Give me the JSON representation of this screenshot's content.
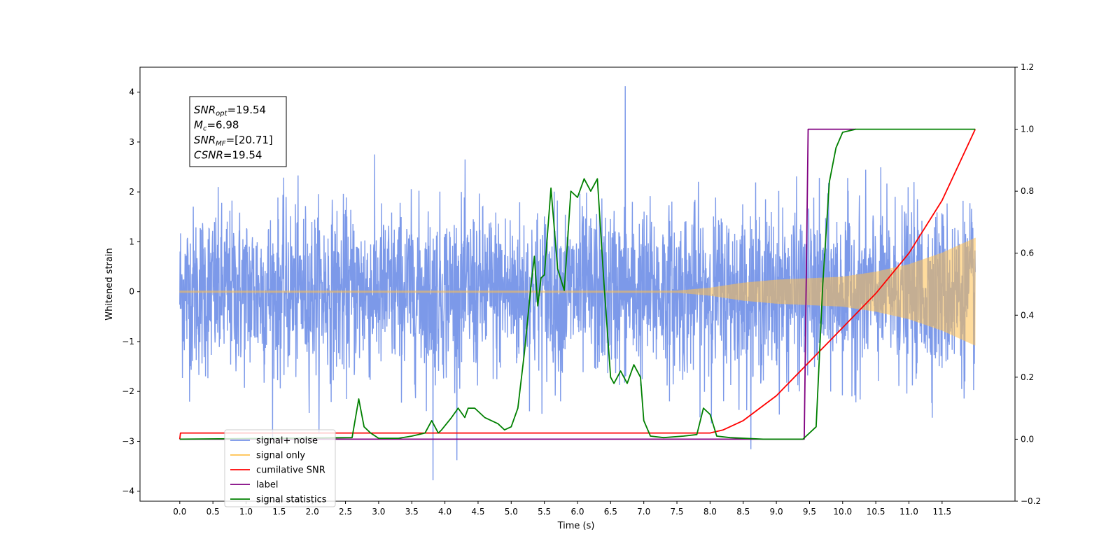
{
  "chart_data": {
    "type": "line",
    "xlabel": "Time (s)",
    "ylabel": "Whitened strain",
    "ylabel_right": "",
    "xlim": [
      -0.6,
      12.6
    ],
    "ylim": [
      -4.2,
      4.5
    ],
    "ylim_right": [
      -0.2,
      1.2
    ],
    "x_ticks": [
      "0.0",
      "0.5",
      "1.0",
      "1.5",
      "2.0",
      "2.5",
      "3.0",
      "3.5",
      "4.0",
      "4.5",
      "5.0",
      "5.5",
      "6.0",
      "6.5",
      "7.0",
      "7.5",
      "8.0",
      "8.5",
      "9.0",
      "9.5",
      "10.0",
      "10.5",
      "11.0",
      "11.5"
    ],
    "y_ticks": [
      "4",
      "3",
      "2",
      "1",
      "0",
      "−1",
      "−2",
      "−3",
      "−4"
    ],
    "y_ticks_right": [
      "1.2",
      "1.0",
      "0.8",
      "0.6",
      "0.4",
      "0.2",
      "0.0",
      "−0.2"
    ],
    "grid": false,
    "legend_position": "lower-left",
    "annotation": {
      "lines": [
        {
          "label": "SNR",
          "sub": "opt",
          "value": "=19.54"
        },
        {
          "label": "M",
          "sub": "c",
          "value": "=6.98"
        },
        {
          "label": "SNR",
          "sub": "MF",
          "value": "=[20.71]"
        },
        {
          "label": "CSNR",
          "sub": "",
          "value": "=19.54"
        }
      ]
    },
    "series": [
      {
        "name": "signal+ noise",
        "color": "#7593e8",
        "axis": "left",
        "kind": "noise",
        "noise_amplitude_typical": 1.6,
        "max_peak": {
          "x": 6.72,
          "y": 4.12
        },
        "min_peak": {
          "x": 3.82,
          "y": -3.78
        }
      },
      {
        "name": "signal only",
        "color": "#ffc04d",
        "axis": "left",
        "kind": "chirp",
        "envelope": [
          [
            0.0,
            0.02
          ],
          [
            7.5,
            0.02
          ],
          [
            8.0,
            0.08
          ],
          [
            8.5,
            0.18
          ],
          [
            9.0,
            0.24
          ],
          [
            9.5,
            0.27
          ],
          [
            10.0,
            0.3
          ],
          [
            10.5,
            0.4
          ],
          [
            11.0,
            0.55
          ],
          [
            11.5,
            0.78
          ],
          [
            12.0,
            1.08
          ]
        ]
      },
      {
        "name": "cumilative SNR",
        "color": "#ff0000",
        "axis": "right",
        "kind": "line",
        "x": [
          0.0,
          0.01,
          8.0,
          8.2,
          8.5,
          9.0,
          9.5,
          10.0,
          10.5,
          11.0,
          11.5,
          12.0
        ],
        "y": [
          0.0,
          0.02,
          0.02,
          0.03,
          0.06,
          0.14,
          0.25,
          0.36,
          0.47,
          0.6,
          0.77,
          1.0
        ]
      },
      {
        "name": "label",
        "color": "#800080",
        "axis": "right",
        "kind": "line",
        "x": [
          0.0,
          9.42,
          9.48,
          10.2
        ],
        "y": [
          0.0,
          0.0,
          1.0,
          1.0
        ]
      },
      {
        "name": "signal statistics",
        "color": "#008000",
        "axis": "right",
        "kind": "line",
        "x": [
          0.0,
          2.6,
          2.7,
          2.78,
          2.88,
          3.0,
          3.3,
          3.5,
          3.7,
          3.8,
          3.9,
          3.95,
          4.1,
          4.2,
          4.3,
          4.35,
          4.45,
          4.6,
          4.8,
          4.9,
          5.0,
          5.1,
          5.2,
          5.3,
          5.35,
          5.4,
          5.45,
          5.5,
          5.6,
          5.7,
          5.8,
          5.9,
          6.0,
          6.1,
          6.2,
          6.3,
          6.4,
          6.5,
          6.55,
          6.65,
          6.75,
          6.85,
          6.95,
          7.0,
          7.1,
          7.3,
          7.6,
          7.8,
          7.9,
          8.0,
          8.1,
          8.3,
          8.8,
          9.4,
          9.6,
          9.7,
          9.8,
          9.9,
          10.0,
          10.2,
          12.0
        ],
        "y": [
          0.0,
          0.005,
          0.13,
          0.04,
          0.02,
          0.003,
          0.003,
          0.01,
          0.02,
          0.06,
          0.02,
          0.03,
          0.07,
          0.1,
          0.07,
          0.1,
          0.1,
          0.07,
          0.05,
          0.03,
          0.04,
          0.1,
          0.28,
          0.5,
          0.59,
          0.43,
          0.52,
          0.53,
          0.81,
          0.55,
          0.48,
          0.8,
          0.78,
          0.84,
          0.8,
          0.84,
          0.5,
          0.2,
          0.18,
          0.22,
          0.18,
          0.24,
          0.2,
          0.06,
          0.01,
          0.005,
          0.01,
          0.015,
          0.1,
          0.08,
          0.01,
          0.005,
          0.0,
          0.0,
          0.04,
          0.5,
          0.83,
          0.94,
          0.99,
          1.0,
          1.0
        ]
      }
    ]
  }
}
